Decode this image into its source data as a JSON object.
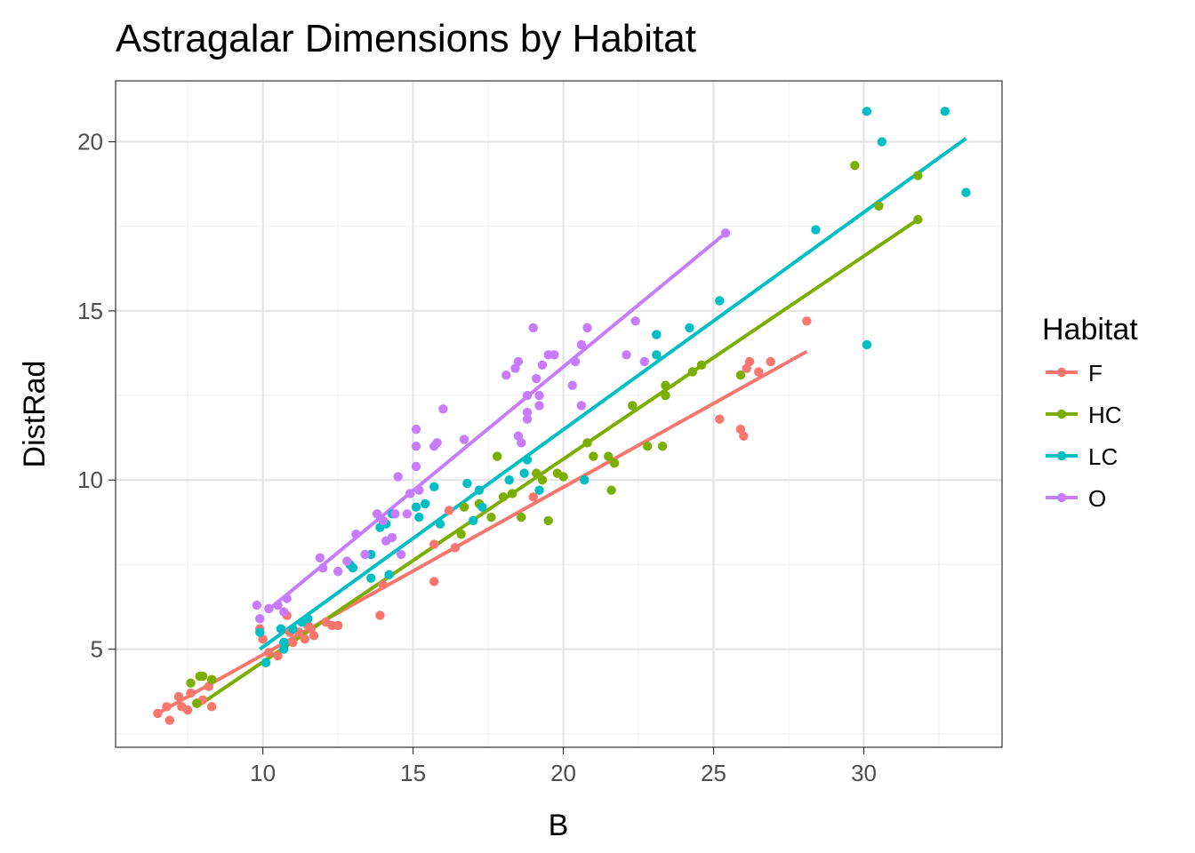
{
  "chart_data": {
    "type": "scatter",
    "title": "Astragalar Dimensions by Habitat",
    "xlabel": "B",
    "ylabel": "DistRad",
    "xlim": [
      5.1,
      34.6
    ],
    "ylim": [
      2.1,
      21.8
    ],
    "x_ticks": [
      10,
      15,
      20,
      25,
      30
    ],
    "y_ticks": [
      5,
      10,
      15,
      20
    ],
    "x_tick_labels": [
      "10",
      "15",
      "20",
      "25",
      "30"
    ],
    "y_tick_labels": [
      "5",
      "10",
      "15",
      "20"
    ],
    "grid": true,
    "legend": {
      "title": "Habitat",
      "placement": "right"
    },
    "series": [
      {
        "name": "F",
        "color": "#F8766D",
        "fit": {
          "x": [
            6.5,
            28.1
          ],
          "y": [
            3.1,
            13.8
          ]
        },
        "points": [
          [
            6.5,
            3.1
          ],
          [
            6.8,
            3.3
          ],
          [
            6.9,
            2.9
          ],
          [
            7.2,
            3.6
          ],
          [
            7.3,
            3.3
          ],
          [
            7.5,
            3.2
          ],
          [
            7.6,
            3.7
          ],
          [
            7.8,
            3.4
          ],
          [
            8.0,
            3.5
          ],
          [
            8.2,
            3.9
          ],
          [
            8.3,
            3.3
          ],
          [
            9.9,
            5.6
          ],
          [
            10.0,
            5.3
          ],
          [
            10.2,
            4.9
          ],
          [
            10.5,
            4.8
          ],
          [
            10.8,
            6.0
          ],
          [
            10.9,
            5.5
          ],
          [
            11.0,
            5.2
          ],
          [
            11.2,
            5.5
          ],
          [
            11.4,
            5.3
          ],
          [
            11.5,
            5.7
          ],
          [
            11.6,
            5.6
          ],
          [
            11.7,
            5.4
          ],
          [
            12.1,
            5.8
          ],
          [
            12.3,
            5.7
          ],
          [
            12.5,
            5.7
          ],
          [
            13.9,
            6.0
          ],
          [
            14.0,
            6.9
          ],
          [
            15.7,
            8.1
          ],
          [
            15.7,
            7.0
          ],
          [
            16.2,
            9.1
          ],
          [
            16.4,
            8.0
          ],
          [
            19.0,
            9.5
          ],
          [
            25.2,
            11.8
          ],
          [
            25.9,
            11.5
          ],
          [
            26.0,
            11.3
          ],
          [
            26.1,
            13.3
          ],
          [
            26.2,
            13.5
          ],
          [
            26.5,
            13.2
          ],
          [
            26.9,
            13.5
          ],
          [
            28.1,
            14.7
          ]
        ]
      },
      {
        "name": "HC",
        "color": "#7CAE00",
        "fit": {
          "x": [
            7.8,
            31.8
          ],
          "y": [
            3.3,
            17.7
          ]
        },
        "points": [
          [
            7.6,
            4.0
          ],
          [
            7.9,
            4.2
          ],
          [
            8.0,
            4.2
          ],
          [
            8.3,
            4.1
          ],
          [
            7.8,
            3.4
          ],
          [
            16.6,
            8.4
          ],
          [
            16.7,
            9.2
          ],
          [
            17.2,
            9.3
          ],
          [
            17.6,
            8.9
          ],
          [
            17.8,
            10.7
          ],
          [
            18.0,
            9.5
          ],
          [
            18.3,
            9.6
          ],
          [
            18.6,
            8.9
          ],
          [
            19.1,
            10.2
          ],
          [
            19.3,
            10.0
          ],
          [
            19.5,
            8.8
          ],
          [
            19.8,
            10.2
          ],
          [
            20.0,
            10.1
          ],
          [
            20.8,
            11.1
          ],
          [
            21.0,
            10.7
          ],
          [
            21.5,
            10.7
          ],
          [
            21.6,
            9.7
          ],
          [
            21.7,
            10.5
          ],
          [
            22.3,
            12.2
          ],
          [
            22.8,
            11.0
          ],
          [
            23.1,
            14.3
          ],
          [
            23.3,
            11.0
          ],
          [
            23.4,
            12.8
          ],
          [
            23.4,
            12.5
          ],
          [
            24.3,
            13.2
          ],
          [
            24.6,
            13.4
          ],
          [
            25.9,
            13.1
          ],
          [
            29.7,
            19.3
          ],
          [
            30.5,
            18.1
          ],
          [
            31.8,
            19.0
          ],
          [
            31.8,
            17.7
          ]
        ]
      },
      {
        "name": "LC",
        "color": "#00BFC4",
        "fit": {
          "x": [
            9.9,
            33.4
          ],
          "y": [
            5.0,
            20.1
          ]
        },
        "points": [
          [
            9.9,
            5.5
          ],
          [
            10.1,
            4.6
          ],
          [
            10.6,
            5.6
          ],
          [
            10.7,
            5.2
          ],
          [
            10.7,
            5.0
          ],
          [
            11.0,
            5.6
          ],
          [
            11.3,
            5.8
          ],
          [
            11.5,
            5.9
          ],
          [
            12.9,
            7.5
          ],
          [
            13.0,
            7.4
          ],
          [
            13.6,
            7.8
          ],
          [
            13.6,
            7.1
          ],
          [
            13.9,
            8.6
          ],
          [
            14.1,
            8.7
          ],
          [
            14.3,
            9.0
          ],
          [
            14.2,
            7.2
          ],
          [
            15.1,
            9.2
          ],
          [
            15.2,
            8.9
          ],
          [
            15.4,
            9.3
          ],
          [
            15.7,
            9.8
          ],
          [
            15.9,
            8.7
          ],
          [
            16.8,
            9.9
          ],
          [
            17.0,
            8.8
          ],
          [
            17.2,
            9.7
          ],
          [
            17.3,
            9.2
          ],
          [
            18.2,
            10.0
          ],
          [
            18.7,
            10.2
          ],
          [
            18.8,
            10.6
          ],
          [
            19.2,
            9.7
          ],
          [
            20.7,
            10.0
          ],
          [
            23.1,
            14.3
          ],
          [
            23.1,
            13.7
          ],
          [
            24.2,
            14.5
          ],
          [
            25.2,
            15.3
          ],
          [
            28.4,
            17.4
          ],
          [
            30.1,
            14.0
          ],
          [
            30.1,
            20.9
          ],
          [
            30.6,
            20.0
          ],
          [
            32.7,
            20.9
          ],
          [
            33.4,
            18.5
          ]
        ]
      },
      {
        "name": "O",
        "color": "#C77CFF",
        "fit": {
          "x": [
            10.1,
            25.4
          ],
          "y": [
            6.1,
            17.3
          ]
        },
        "points": [
          [
            9.8,
            6.3
          ],
          [
            9.9,
            5.9
          ],
          [
            10.2,
            6.2
          ],
          [
            10.5,
            6.3
          ],
          [
            10.7,
            6.1
          ],
          [
            10.8,
            6.5
          ],
          [
            11.9,
            7.7
          ],
          [
            12.0,
            7.4
          ],
          [
            12.5,
            7.3
          ],
          [
            12.8,
            7.6
          ],
          [
            13.1,
            8.4
          ],
          [
            13.4,
            7.8
          ],
          [
            13.8,
            9.0
          ],
          [
            14.0,
            8.8
          ],
          [
            14.1,
            8.2
          ],
          [
            14.3,
            8.3
          ],
          [
            14.4,
            9.0
          ],
          [
            14.5,
            10.1
          ],
          [
            14.6,
            7.8
          ],
          [
            14.8,
            9.0
          ],
          [
            14.9,
            9.6
          ],
          [
            15.1,
            11.5
          ],
          [
            15.1,
            11.0
          ],
          [
            15.1,
            10.4
          ],
          [
            15.2,
            9.7
          ],
          [
            15.7,
            11.0
          ],
          [
            15.8,
            11.1
          ],
          [
            16.0,
            12.1
          ],
          [
            16.7,
            11.2
          ],
          [
            18.1,
            13.1
          ],
          [
            18.4,
            13.3
          ],
          [
            18.5,
            13.5
          ],
          [
            18.5,
            11.3
          ],
          [
            18.6,
            11.1
          ],
          [
            18.8,
            12.5
          ],
          [
            18.8,
            12.0
          ],
          [
            18.8,
            11.8
          ],
          [
            19.0,
            14.5
          ],
          [
            19.1,
            13.0
          ],
          [
            19.2,
            12.5
          ],
          [
            19.2,
            12.2
          ],
          [
            19.3,
            13.4
          ],
          [
            19.5,
            13.7
          ],
          [
            19.7,
            13.7
          ],
          [
            20.3,
            12.8
          ],
          [
            20.4,
            13.5
          ],
          [
            20.6,
            14.0
          ],
          [
            20.6,
            12.2
          ],
          [
            20.8,
            14.5
          ],
          [
            22.1,
            13.7
          ],
          [
            22.4,
            14.7
          ],
          [
            22.7,
            13.5
          ],
          [
            25.4,
            17.3
          ]
        ]
      }
    ]
  }
}
